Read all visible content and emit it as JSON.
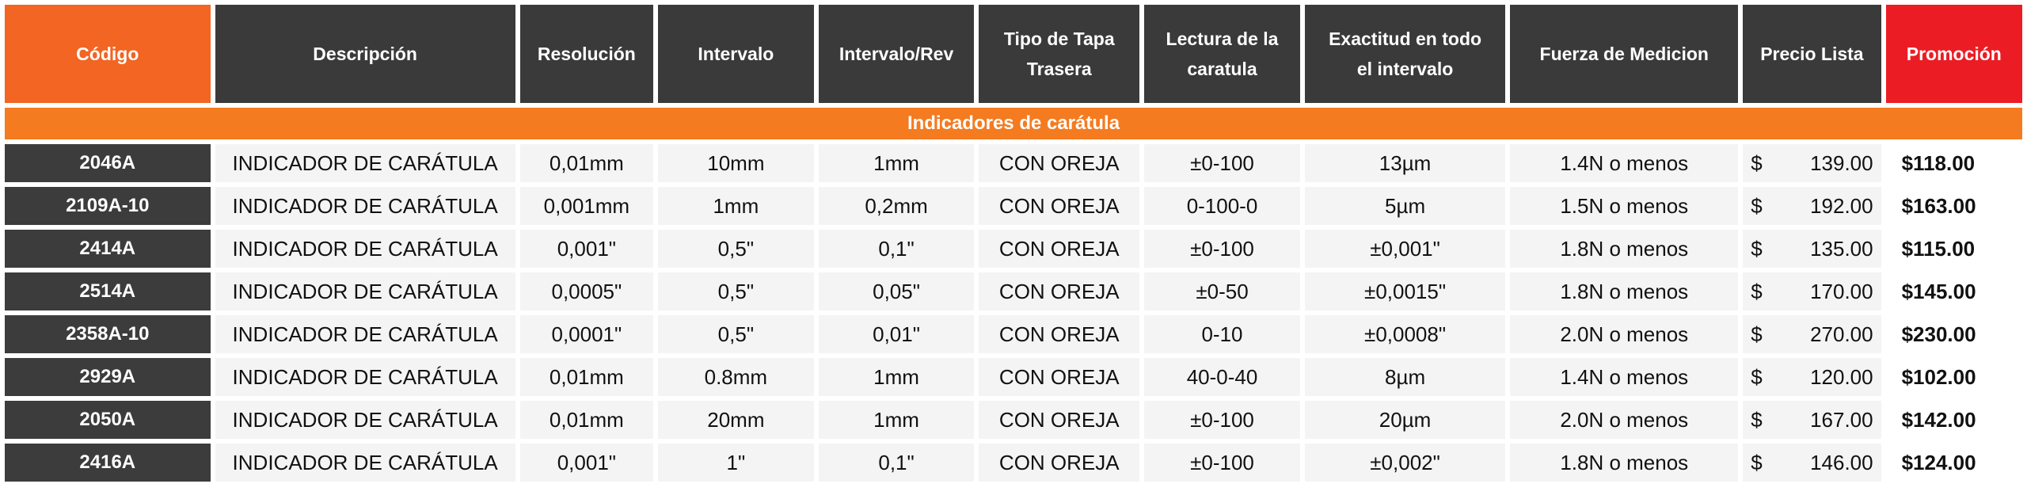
{
  "headers": {
    "codigo": "Código",
    "descripcion": "Descripción",
    "resolucion": "Resolución",
    "intervalo": "Intervalo",
    "intervalo_rev": "Intervalo/Rev",
    "tipo_tapa_1": "Tipo de Tapa",
    "tipo_tapa_2": "Trasera",
    "lectura_1": "Lectura de la",
    "lectura_2": "caratula",
    "exactitud_1": "Exactitud en todo",
    "exactitud_2": "el intervalo",
    "fuerza": "Fuerza de Medicion",
    "precio_lista": "Precio Lista",
    "promocion": "Promoción"
  },
  "section_title": "Indicadores de carátula",
  "currency_symbol": "$",
  "colors": {
    "orange": "#f26522",
    "section_orange": "#f47b20",
    "dark": "#3a3a3a",
    "promo_red": "#ec1c24"
  },
  "rows": [
    {
      "codigo": "2046A",
      "descripcion": "INDICADOR DE CARÁTULA",
      "resolucion": "0,01mm",
      "intervalo": "10mm",
      "intervalo_rev": "1mm",
      "tipo_tapa": "CON OREJA",
      "lectura": "±0-100",
      "exactitud": "13µm",
      "fuerza": "1.4N o menos",
      "precio": "139.00",
      "promocion": "$118.00"
    },
    {
      "codigo": "2109A-10",
      "descripcion": "INDICADOR DE CARÁTULA",
      "resolucion": "0,001mm",
      "intervalo": "1mm",
      "intervalo_rev": "0,2mm",
      "tipo_tapa": "CON OREJA",
      "lectura": "0-100-0",
      "exactitud": "5µm",
      "fuerza": "1.5N o menos",
      "precio": "192.00",
      "promocion": "$163.00"
    },
    {
      "codigo": "2414A",
      "descripcion": "INDICADOR DE CARÁTULA",
      "resolucion": "0,001\"",
      "intervalo": "0,5\"",
      "intervalo_rev": "0,1\"",
      "tipo_tapa": "CON OREJA",
      "lectura": "±0-100",
      "exactitud": "±0,001\"",
      "fuerza": "1.8N o menos",
      "precio": "135.00",
      "promocion": "$115.00"
    },
    {
      "codigo": "2514A",
      "descripcion": "INDICADOR DE CARÁTULA",
      "resolucion": "0,0005\"",
      "intervalo": "0,5\"",
      "intervalo_rev": "0,05\"",
      "tipo_tapa": "CON OREJA",
      "lectura": "±0-50",
      "exactitud": "±0,0015\"",
      "fuerza": "1.8N o menos",
      "precio": "170.00",
      "promocion": "$145.00"
    },
    {
      "codigo": "2358A-10",
      "descripcion": "INDICADOR DE CARÁTULA",
      "resolucion": "0,0001\"",
      "intervalo": "0,5\"",
      "intervalo_rev": "0,01\"",
      "tipo_tapa": "CON OREJA",
      "lectura": "0-10",
      "exactitud": "±0,0008\"",
      "fuerza": "2.0N o menos",
      "precio": "270.00",
      "promocion": "$230.00"
    },
    {
      "codigo": "2929A",
      "descripcion": "INDICADOR DE CARÁTULA",
      "resolucion": "0,01mm",
      "intervalo": "0.8mm",
      "intervalo_rev": "1mm",
      "tipo_tapa": "CON OREJA",
      "lectura": "40-0-40",
      "exactitud": "8µm",
      "fuerza": "1.4N o menos",
      "precio": "120.00",
      "promocion": "$102.00"
    },
    {
      "codigo": "2050A",
      "descripcion": "INDICADOR DE CARÁTULA",
      "resolucion": "0,01mm",
      "intervalo": "20mm",
      "intervalo_rev": "1mm",
      "tipo_tapa": "CON OREJA",
      "lectura": "±0-100",
      "exactitud": "20µm",
      "fuerza": "2.0N o menos",
      "precio": "167.00",
      "promocion": "$142.00"
    },
    {
      "codigo": "2416A",
      "descripcion": "INDICADOR DE CARÁTULA",
      "resolucion": "0,001\"",
      "intervalo": "1\"",
      "intervalo_rev": "0,1\"",
      "tipo_tapa": "CON OREJA",
      "lectura": "±0-100",
      "exactitud": "±0,002\"",
      "fuerza": "1.8N o menos",
      "precio": "146.00",
      "promocion": "$124.00"
    }
  ]
}
